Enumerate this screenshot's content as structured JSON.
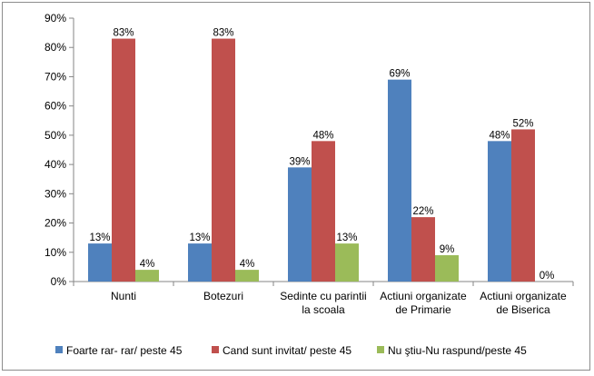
{
  "chart_data": {
    "type": "bar",
    "title": "",
    "xlabel": "",
    "ylabel": "",
    "ylim": [
      0,
      90
    ],
    "y_ticks": [
      0,
      10,
      20,
      30,
      40,
      50,
      60,
      70,
      80,
      90
    ],
    "y_tick_format": "percent",
    "grid": false,
    "legend_position": "bottom",
    "categories": [
      [
        "Nunti"
      ],
      [
        "Botezuri"
      ],
      [
        "Sedinte cu parintii",
        "la scoala"
      ],
      [
        "Actiuni organizate",
        "de Primarie"
      ],
      [
        "Actiuni organizate",
        "de Biserica"
      ]
    ],
    "series": [
      {
        "name": "Foarte rar- rar/ peste 45",
        "color": "#4f81bd",
        "values": [
          13,
          13,
          39,
          69,
          48
        ]
      },
      {
        "name": "Cand sunt invitat/ peste 45",
        "color": "#c0504d",
        "values": [
          83,
          83,
          48,
          22,
          52
        ]
      },
      {
        "name": "Nu ştiu-Nu raspund/peste 45",
        "color": "#9bbb59",
        "values": [
          4,
          4,
          13,
          9,
          0
        ]
      }
    ],
    "data_label_format": "percent"
  }
}
